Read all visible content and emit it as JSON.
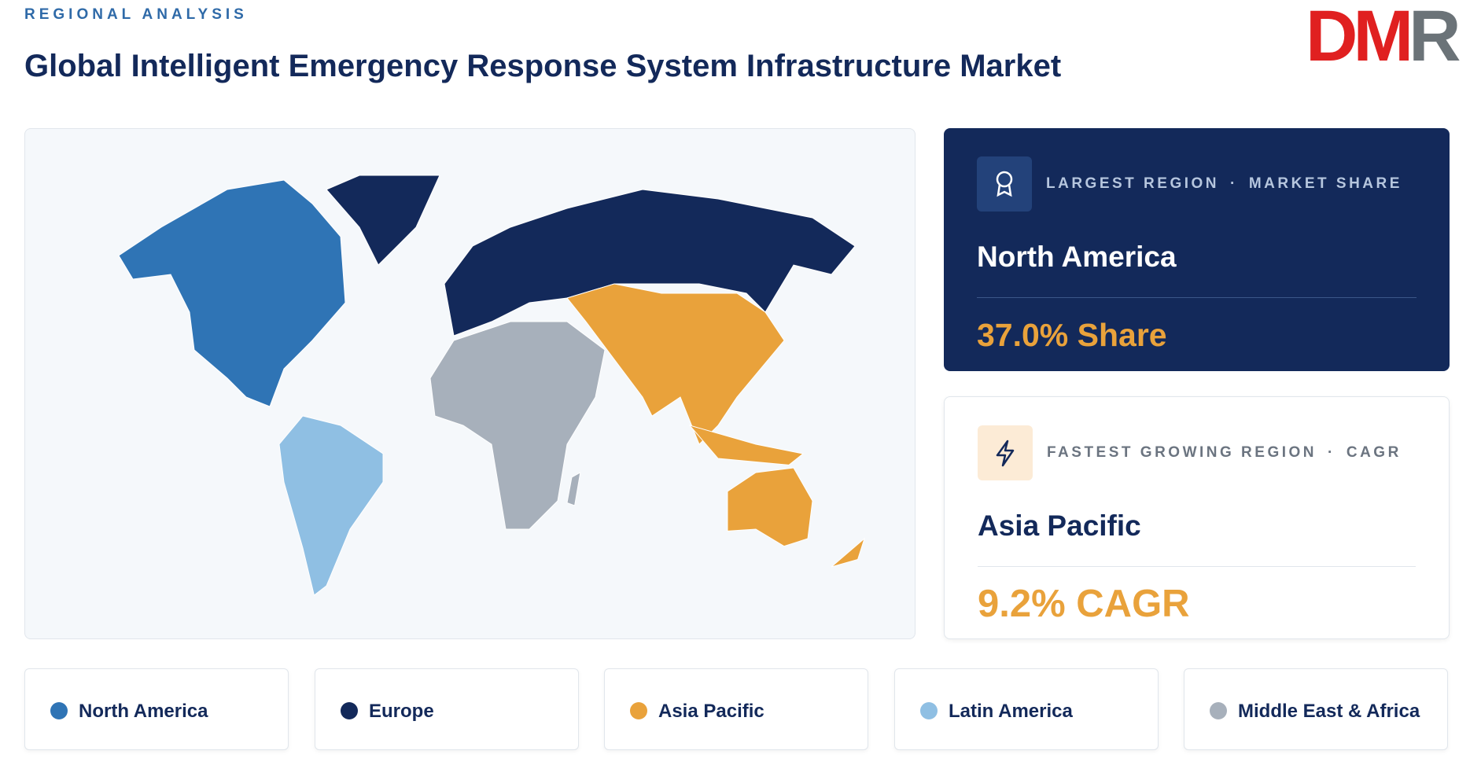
{
  "header": {
    "eyebrow": "REGIONAL ANALYSIS",
    "title": "Global Intelligent Emergency Response System Infrastructure Market",
    "logo": {
      "left": "DM",
      "right": "R"
    }
  },
  "largest_region": {
    "label": "LARGEST REGION",
    "metric": "MARKET SHARE",
    "region": "North America",
    "value": "37.0% Share"
  },
  "fastest_region": {
    "label": "FASTEST GROWING REGION",
    "metric": "CAGR",
    "region": "Asia Pacific",
    "value": "9.2% CAGR"
  },
  "legend": [
    {
      "name": "North America",
      "color": "#2f74b5"
    },
    {
      "name": "Europe",
      "color": "#13295a"
    },
    {
      "name": "Asia Pacific",
      "color": "#e9a23b"
    },
    {
      "name": "Latin America",
      "color": "#8fbfe3"
    },
    {
      "name": "Middle East & Africa",
      "color": "#a7b0bb"
    }
  ]
}
